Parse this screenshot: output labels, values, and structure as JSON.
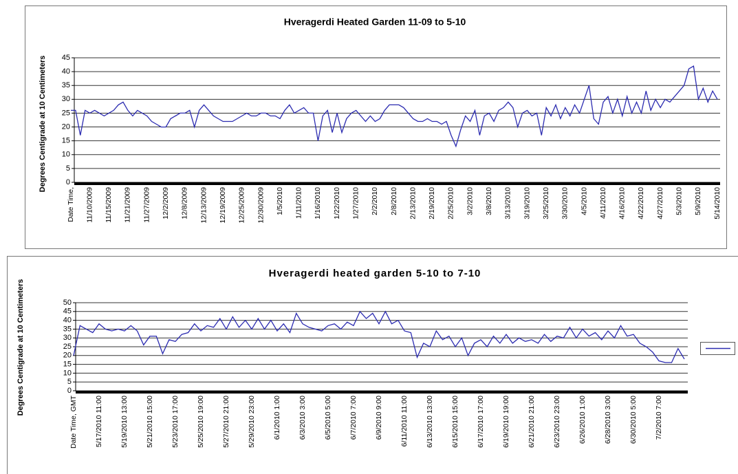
{
  "chart_data": [
    {
      "type": "line",
      "title": "Hveragerdi Heated Garden 11-09 to 5-10",
      "y_label": "Degrees Centigrade at 10 Centimeters",
      "color": "#2b2bb0",
      "grid": true,
      "ylim": [
        0,
        45
      ],
      "yticks": [
        0,
        5,
        10,
        15,
        20,
        25,
        30,
        35,
        40,
        45
      ],
      "categories": [
        "Date Time,",
        null,
        null,
        null,
        "11/10/2009",
        null,
        null,
        null,
        "11/15/2009",
        null,
        null,
        null,
        "11/21/2009",
        null,
        null,
        null,
        "11/27/2009",
        null,
        null,
        null,
        "12/2/2009",
        null,
        null,
        null,
        "12/8/2009",
        null,
        null,
        null,
        "12/13/2009",
        null,
        null,
        null,
        "12/19/2009",
        null,
        null,
        null,
        "12/25/2009",
        null,
        null,
        null,
        "12/30/2009",
        null,
        null,
        null,
        "1/5/2010",
        null,
        null,
        null,
        "1/11/2010",
        null,
        null,
        null,
        "1/16/2010",
        null,
        null,
        null,
        "1/22/2010",
        null,
        null,
        null,
        "1/27/2010",
        null,
        null,
        null,
        "2/2/2010",
        null,
        null,
        null,
        "2/8/2010",
        null,
        null,
        null,
        "2/13/2010",
        null,
        null,
        null,
        "2/19/2010",
        null,
        null,
        null,
        "2/25/2010",
        null,
        null,
        null,
        "3/2/2010",
        null,
        null,
        null,
        "3/8/2010",
        null,
        null,
        null,
        "3/13/2010",
        null,
        null,
        null,
        "3/19/2010",
        null,
        null,
        null,
        "3/25/2010",
        null,
        null,
        null,
        "3/30/2010",
        null,
        null,
        null,
        "4/5/2010",
        null,
        null,
        null,
        "4/11/2010",
        null,
        null,
        null,
        "4/16/2010",
        null,
        null,
        null,
        "4/22/2010",
        null,
        null,
        null,
        "4/27/2010",
        null,
        null,
        null,
        "5/3/2010",
        null,
        null,
        null,
        "5/9/2010",
        null,
        null,
        null,
        "5/14/2010"
      ],
      "values": [
        26,
        26,
        17,
        26,
        25,
        26,
        25,
        24,
        25,
        26,
        28,
        29,
        26,
        24,
        26,
        25,
        24,
        22,
        21,
        20,
        20,
        23,
        24,
        25,
        25,
        26,
        20,
        26,
        28,
        26,
        24,
        23,
        22,
        22,
        22,
        23,
        24,
        25,
        24,
        24,
        25,
        25,
        24,
        24,
        23,
        26,
        28,
        25,
        26,
        27,
        25,
        25,
        15,
        24,
        26,
        18,
        25,
        18,
        23,
        25,
        26,
        24,
        22,
        24,
        22,
        23,
        26,
        28,
        28,
        28,
        27,
        25,
        23,
        22,
        22,
        23,
        22,
        22,
        21,
        22,
        17,
        13,
        19,
        24,
        22,
        26,
        17,
        24,
        25,
        22,
        26,
        27,
        29,
        27,
        20,
        25,
        26,
        24,
        25,
        17,
        27,
        24,
        28,
        23,
        27,
        24,
        28,
        25,
        30,
        35,
        23,
        21,
        29,
        31,
        25,
        30,
        24,
        31,
        25,
        29,
        25,
        33,
        26,
        30,
        27,
        30,
        29,
        31,
        33,
        35,
        41,
        42,
        30,
        34,
        29,
        33,
        30
      ]
    },
    {
      "type": "line",
      "title": "Hveragerdi heated garden 5-10  to 7-10",
      "y_label": "Degrees Centigrade at 10 Centimeters",
      "color": "#2b2bb0",
      "grid": true,
      "ylim": [
        0,
        50
      ],
      "yticks": [
        0,
        5,
        10,
        15,
        20,
        25,
        30,
        35,
        40,
        45,
        50
      ],
      "categories": [
        "Date Time, GMT",
        null,
        null,
        null,
        "5/17/2010 11:00",
        null,
        null,
        null,
        "5/19/2010 13:00",
        null,
        null,
        null,
        "5/21/2010 15:00",
        null,
        null,
        null,
        "5/23/2010 17:00",
        null,
        null,
        null,
        "5/25/2010 19:00",
        null,
        null,
        null,
        "5/27/2010 21:00",
        null,
        null,
        null,
        "5/29/2010 23:00",
        null,
        null,
        null,
        "6/1/2010 1:00",
        null,
        null,
        null,
        "6/3/2010 3:00",
        null,
        null,
        null,
        "6/5/2010 5:00",
        null,
        null,
        null,
        "6/7/2010 7:00",
        null,
        null,
        null,
        "6/9/2010 9:00",
        null,
        null,
        null,
        "6/11/2010 11:00",
        null,
        null,
        null,
        "6/13/2010 13:00",
        null,
        null,
        null,
        "6/15/2010 15:00",
        null,
        null,
        null,
        "6/17/2010 17:00",
        null,
        null,
        null,
        "6/19/2010 19:00",
        null,
        null,
        null,
        "6/21/2010 21:00",
        null,
        null,
        null,
        "6/23/2010 23:00",
        null,
        null,
        null,
        "6/26/2010 1:00",
        null,
        null,
        null,
        "6/28/2010 3:00",
        null,
        null,
        null,
        "6/30/2010 5:00",
        null,
        null,
        null,
        "7/2/2010 7:00",
        null,
        null,
        null,
        null
      ],
      "values": [
        20,
        37,
        35,
        33,
        38,
        35,
        34,
        35,
        34,
        37,
        34,
        26,
        31,
        31,
        21,
        29,
        28,
        32,
        33,
        38,
        34,
        37,
        36,
        41,
        35,
        42,
        36,
        40,
        35,
        41,
        35,
        40,
        34,
        38,
        33,
        44,
        38,
        36,
        35,
        34,
        37,
        38,
        35,
        39,
        37,
        45,
        41,
        44,
        38,
        45,
        38,
        40,
        34,
        33,
        19,
        27,
        25,
        34,
        29,
        31,
        25,
        30,
        20,
        27,
        29,
        25,
        31,
        27,
        32,
        27,
        30,
        28,
        29,
        27,
        32,
        28,
        31,
        30,
        36,
        30,
        35,
        31,
        33,
        29,
        34,
        30,
        37,
        31,
        32,
        27,
        25,
        22,
        17,
        16,
        16,
        24,
        18
      ]
    }
  ]
}
